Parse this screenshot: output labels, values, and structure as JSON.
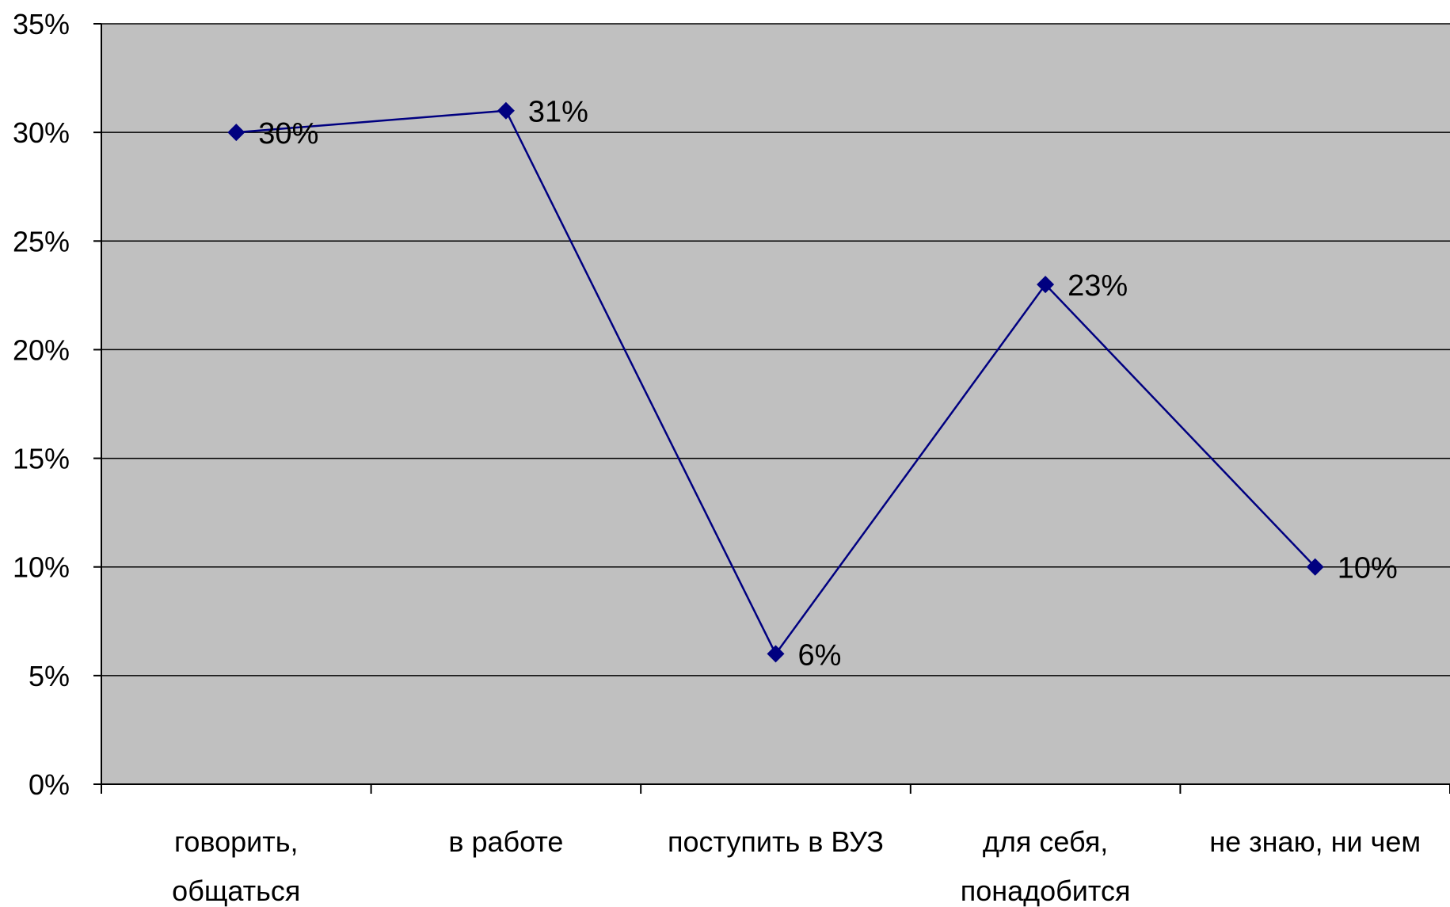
{
  "chart_data": {
    "type": "line",
    "categories": [
      [
        "говорить,",
        "общаться"
      ],
      [
        "в работе"
      ],
      [
        "поступить в ВУЗ"
      ],
      [
        "для себя,",
        "понадобится"
      ],
      [
        "не знаю, ни чем"
      ]
    ],
    "series": [
      {
        "values": [
          30,
          31,
          6,
          23,
          10
        ],
        "data_labels": [
          "30%",
          "31%",
          "6%",
          "23%",
          "10%"
        ]
      }
    ],
    "ylim": [
      0,
      35
    ],
    "yticks": [
      0,
      5,
      10,
      15,
      20,
      25,
      30,
      35
    ],
    "ytick_labels": [
      "0%",
      "5%",
      "10%",
      "15%",
      "20%",
      "25%",
      "30%",
      "35%"
    ],
    "grid": true,
    "legend": "none",
    "colors": {
      "plot_background": "#c0c0c0",
      "gridline": "#000000",
      "line": "#000080",
      "marker": "#000080"
    }
  }
}
